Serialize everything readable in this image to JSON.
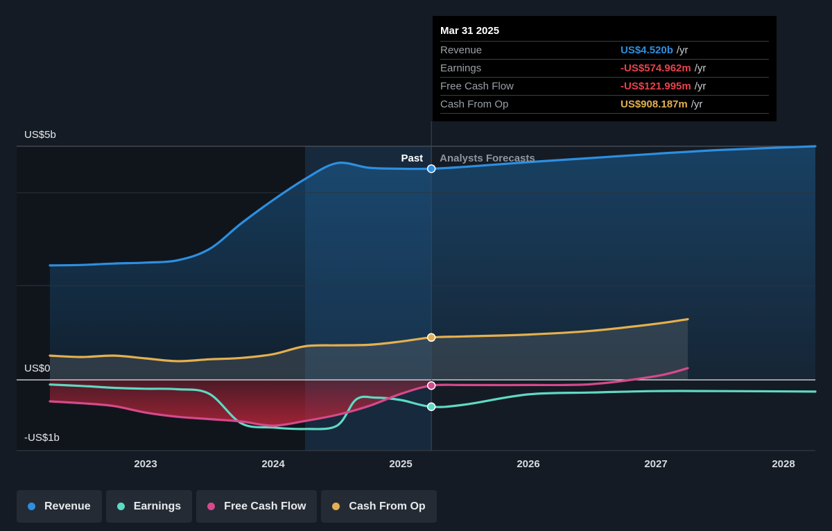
{
  "chart_data": {
    "type": "line",
    "y_axis_labels": [
      "US$5b",
      "US$0",
      "-US$1b"
    ],
    "ylim": [
      -1,
      5
    ],
    "x_ticks": [
      "2023",
      "2024",
      "2025",
      "2026",
      "2027",
      "2028"
    ],
    "past_label": "Past",
    "forecast_label": "Analysts Forecasts",
    "series": [
      {
        "name": "Revenue",
        "color": "#2d8fe0",
        "points": [
          [
            2022.25,
            2.45
          ],
          [
            2022.5,
            2.46
          ],
          [
            2022.75,
            2.49
          ],
          [
            2023.0,
            2.51
          ],
          [
            2023.25,
            2.56
          ],
          [
            2023.5,
            2.8
          ],
          [
            2023.75,
            3.35
          ],
          [
            2024.0,
            3.85
          ],
          [
            2024.25,
            4.3
          ],
          [
            2024.5,
            4.64
          ],
          [
            2024.75,
            4.54
          ],
          [
            2025.0,
            4.52
          ],
          [
            2025.24,
            4.52
          ],
          [
            2025.5,
            4.56
          ],
          [
            2026.0,
            4.66
          ],
          [
            2026.5,
            4.75
          ],
          [
            2027.0,
            4.84
          ],
          [
            2027.5,
            4.92
          ],
          [
            2028.25,
            5.0
          ]
        ]
      },
      {
        "name": "Earnings",
        "color": "#5fd9c3",
        "points": [
          [
            2022.25,
            -0.1
          ],
          [
            2022.5,
            -0.13
          ],
          [
            2022.75,
            -0.17
          ],
          [
            2023.0,
            -0.19
          ],
          [
            2023.25,
            -0.2
          ],
          [
            2023.5,
            -0.3
          ],
          [
            2023.75,
            -0.93
          ],
          [
            2024.0,
            -1.02
          ],
          [
            2024.25,
            -1.05
          ],
          [
            2024.5,
            -0.98
          ],
          [
            2024.65,
            -0.42
          ],
          [
            2024.8,
            -0.38
          ],
          [
            2025.0,
            -0.43
          ],
          [
            2025.24,
            -0.575
          ],
          [
            2025.5,
            -0.53
          ],
          [
            2026.0,
            -0.31
          ],
          [
            2026.5,
            -0.27
          ],
          [
            2027.0,
            -0.24
          ],
          [
            2027.5,
            -0.24
          ],
          [
            2028.25,
            -0.25
          ]
        ]
      },
      {
        "name": "Free Cash Flow",
        "color": "#d6498b",
        "points": [
          [
            2022.25,
            -0.46
          ],
          [
            2022.5,
            -0.5
          ],
          [
            2022.75,
            -0.56
          ],
          [
            2023.0,
            -0.7
          ],
          [
            2023.25,
            -0.79
          ],
          [
            2023.5,
            -0.84
          ],
          [
            2023.75,
            -0.89
          ],
          [
            2024.0,
            -0.98
          ],
          [
            2024.25,
            -0.88
          ],
          [
            2024.5,
            -0.75
          ],
          [
            2024.75,
            -0.56
          ],
          [
            2025.0,
            -0.3
          ],
          [
            2025.24,
            -0.122
          ],
          [
            2025.5,
            -0.11
          ],
          [
            2026.0,
            -0.11
          ],
          [
            2026.5,
            -0.09
          ],
          [
            2027.0,
            0.08
          ],
          [
            2027.25,
            0.25
          ]
        ]
      },
      {
        "name": "Cash From Op",
        "color": "#e4b04f",
        "points": [
          [
            2022.25,
            0.52
          ],
          [
            2022.5,
            0.49
          ],
          [
            2022.75,
            0.52
          ],
          [
            2023.0,
            0.46
          ],
          [
            2023.25,
            0.4
          ],
          [
            2023.5,
            0.44
          ],
          [
            2023.75,
            0.47
          ],
          [
            2024.0,
            0.55
          ],
          [
            2024.25,
            0.72
          ],
          [
            2024.5,
            0.74
          ],
          [
            2024.75,
            0.75
          ],
          [
            2025.0,
            0.82
          ],
          [
            2025.24,
            0.908
          ],
          [
            2025.5,
            0.93
          ],
          [
            2026.0,
            0.97
          ],
          [
            2026.5,
            1.05
          ],
          [
            2027.0,
            1.2
          ],
          [
            2027.25,
            1.3
          ]
        ]
      }
    ]
  },
  "tooltip": {
    "date": "Mar 31 2025",
    "rows": [
      {
        "label": "Revenue",
        "value": "US$4.520b",
        "unit": "/yr",
        "color": "#2d8fe0"
      },
      {
        "label": "Earnings",
        "value": "-US$574.962m",
        "unit": "/yr",
        "color": "#e8424c"
      },
      {
        "label": "Free Cash Flow",
        "value": "-US$121.995m",
        "unit": "/yr",
        "color": "#e8424c"
      },
      {
        "label": "Cash From Op",
        "value": "US$908.187m",
        "unit": "/yr",
        "color": "#e4b04f"
      }
    ]
  },
  "legend": [
    {
      "label": "Revenue",
      "color": "#2d8fe0"
    },
    {
      "label": "Earnings",
      "color": "#5fd9c3"
    },
    {
      "label": "Free Cash Flow",
      "color": "#d6498b"
    },
    {
      "label": "Cash From Op",
      "color": "#e4b04f"
    }
  ]
}
